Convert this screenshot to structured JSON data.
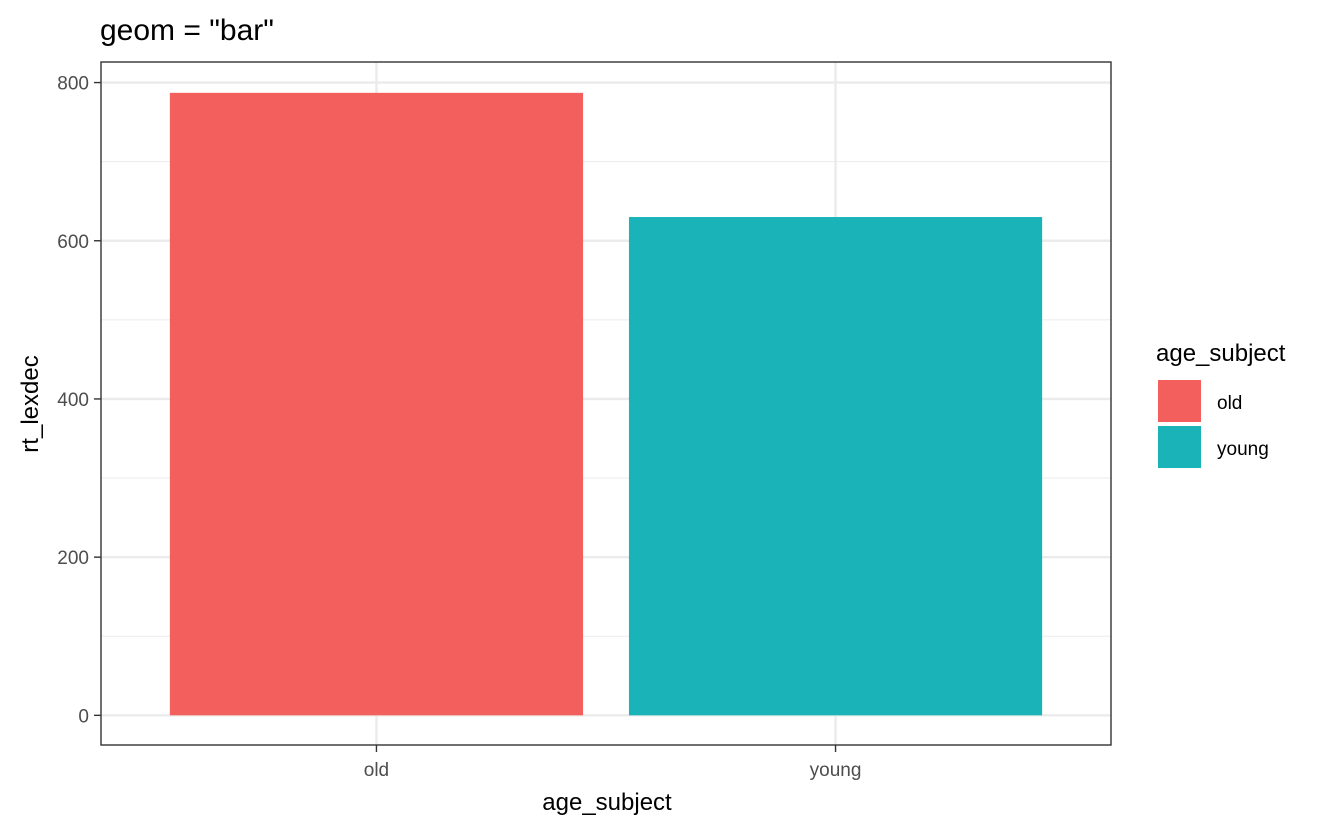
{
  "chart_data": {
    "type": "bar",
    "title": "geom = \"bar\"",
    "xlabel": "age_subject",
    "ylabel": "rt_lexdec",
    "categories": [
      "old",
      "young"
    ],
    "values": [
      787,
      630
    ],
    "colors": [
      "#F25F5C",
      "#1AB3B8"
    ],
    "ylim": [
      -37.5,
      826
    ],
    "yticks": [
      0,
      200,
      400,
      600,
      800
    ],
    "y_minor_ticks": [
      100,
      300,
      500,
      700
    ],
    "grid": true,
    "legend": {
      "title": "age_subject",
      "position": "right",
      "entries": [
        "old",
        "young"
      ]
    }
  }
}
